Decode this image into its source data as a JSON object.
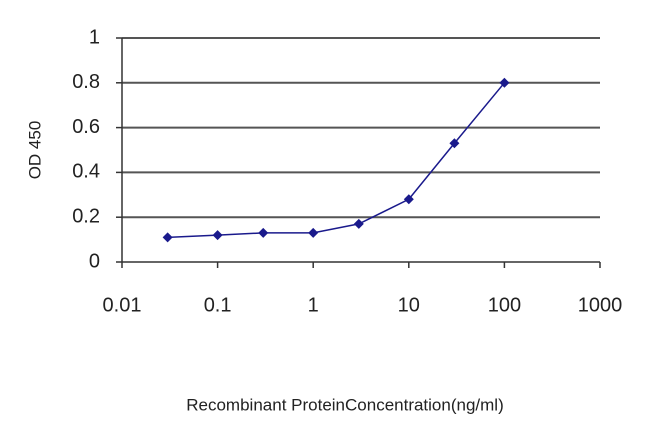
{
  "chart_data": {
    "type": "line",
    "x_label": "Recombinant ProteinConcentration(ng/ml)",
    "y_label": "OD 450",
    "x": [
      0.03,
      0.1,
      0.3,
      1,
      3,
      10,
      30,
      100
    ],
    "values": [
      0.11,
      0.12,
      0.13,
      0.13,
      0.17,
      0.28,
      0.53,
      0.8
    ],
    "color": "#1a1a8c",
    "xscale": "log",
    "xlim": [
      0.01,
      1000
    ],
    "xticks": [
      0.01,
      0.1,
      1,
      10,
      100,
      1000
    ],
    "ylim": [
      0,
      1
    ],
    "yticks": [
      0,
      0.2,
      0.4,
      0.6,
      0.8,
      1
    ],
    "grid": true
  }
}
